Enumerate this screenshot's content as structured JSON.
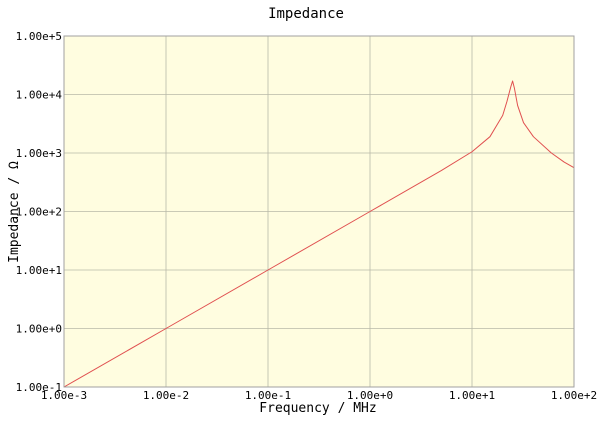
{
  "chart_data": {
    "type": "line",
    "title": "Impedance",
    "xlabel": "Frequency / MHz",
    "ylabel": "Impedance / Ω",
    "x_scale": "log",
    "y_scale": "log",
    "xlim": [
      0.001,
      100
    ],
    "ylim": [
      0.1,
      100000
    ],
    "grid": true,
    "x_ticks": [
      {
        "value": 0.001,
        "label": "1.00e-3"
      },
      {
        "value": 0.01,
        "label": "1.00e-2"
      },
      {
        "value": 0.1,
        "label": "1.00e-1"
      },
      {
        "value": 1,
        "label": "1.00e+0"
      },
      {
        "value": 10,
        "label": "1.00e+1"
      },
      {
        "value": 100,
        "label": "1.00e+2"
      }
    ],
    "y_ticks": [
      {
        "value": 0.1,
        "label": "1.00e-1"
      },
      {
        "value": 1,
        "label": "1.00e+0"
      },
      {
        "value": 10,
        "label": "1.00e+1"
      },
      {
        "value": 100,
        "label": "1.00e+2"
      },
      {
        "value": 1000,
        "label": "1.00e+3"
      },
      {
        "value": 10000,
        "label": "1.00e+4"
      },
      {
        "value": 100000,
        "label": "1.00e+5"
      }
    ],
    "series": [
      {
        "color": "#e05050",
        "x": [
          0.001,
          0.01,
          0.1,
          1,
          5,
          10,
          15,
          20,
          22,
          24,
          25,
          26,
          28,
          32,
          40,
          60,
          80,
          100
        ],
        "y": [
          0.1,
          1,
          10,
          100,
          500,
          1050,
          1900,
          4400,
          7600,
          13500,
          17000,
          13000,
          6500,
          3300,
          1900,
          1000,
          700,
          560
        ]
      }
    ],
    "colors": {
      "plot_background": "#fffde0",
      "grid": "#b8b8a8",
      "frame": "#a0a0a0"
    }
  }
}
